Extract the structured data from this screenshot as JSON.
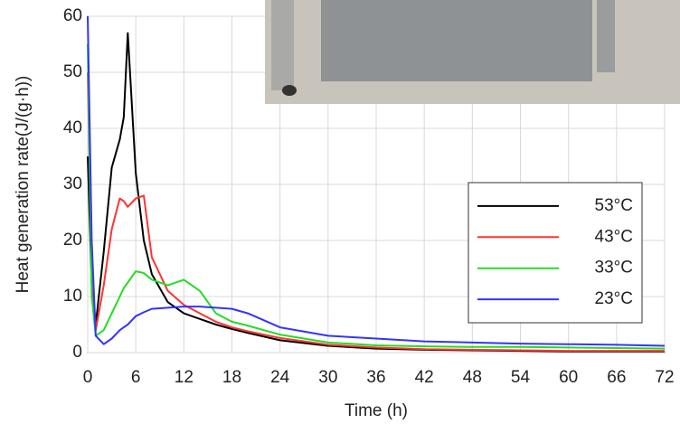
{
  "chart_data": {
    "type": "line",
    "x_label": "Time (h)",
    "y_label": "Heat generation rate(J/(g·h))",
    "x": [
      0,
      0.5,
      1,
      2,
      3,
      4,
      4.5,
      5,
      6,
      7,
      8,
      10,
      12,
      14,
      16,
      18,
      20,
      24,
      30,
      36,
      42,
      48,
      54,
      60,
      66,
      72
    ],
    "series": [
      {
        "name": "53°C",
        "color": "#000000",
        "values": [
          35,
          12,
          5,
          18,
          33,
          38,
          42,
          57,
          32,
          20,
          14,
          9,
          7,
          6,
          5,
          4.2,
          3.5,
          2.2,
          1.2,
          0.7,
          0.5,
          0.4,
          0.3,
          0.2,
          0.2,
          0.2
        ]
      },
      {
        "name": "43°C",
        "color": "#ff3333",
        "values": [
          50,
          15,
          4,
          12,
          22,
          27.5,
          27,
          26,
          27.5,
          28,
          17,
          11,
          8.5,
          7,
          5.5,
          4.5,
          3.8,
          2.6,
          1.4,
          0.9,
          0.6,
          0.5,
          0.4,
          0.3,
          0.3,
          0.3
        ]
      },
      {
        "name": "33°C",
        "color": "#22dd22",
        "values": [
          55,
          10,
          3,
          4,
          7,
          10,
          11.5,
          12.5,
          14.5,
          14.2,
          13,
          12,
          13,
          11,
          7,
          5.5,
          4.8,
          3.2,
          1.8,
          1.3,
          1.1,
          1,
          1,
          0.9,
          0.8,
          0.7
        ]
      },
      {
        "name": "23°C",
        "color": "#3333ff",
        "values": [
          60,
          20,
          3,
          1.5,
          2.5,
          4,
          4.5,
          5,
          6.5,
          7.2,
          7.8,
          8,
          8.2,
          8.2,
          8,
          7.8,
          7,
          4.5,
          3,
          2.5,
          2,
          1.8,
          1.6,
          1.5,
          1.4,
          1.2
        ]
      }
    ],
    "xlim": [
      0,
      72
    ],
    "xticks": [
      0,
      6,
      12,
      18,
      24,
      30,
      36,
      42,
      48,
      54,
      60,
      66,
      72
    ],
    "ylim": [
      0,
      60
    ],
    "yticks": [
      0,
      10,
      20,
      30,
      40,
      50,
      60
    ],
    "grid": true,
    "legend": "right"
  }
}
